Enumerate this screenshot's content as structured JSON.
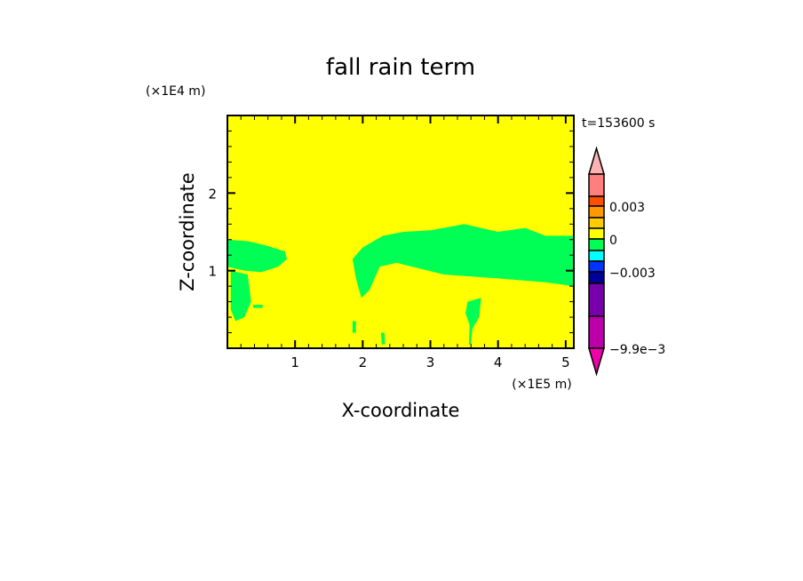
{
  "chart_data": {
    "type": "heatmap",
    "title": "fall rain term",
    "xlabel": "X-coordinate",
    "ylabel": "Z-coordinate",
    "x_unit": "(×1E5 m)",
    "y_unit": "(×1E4 m)",
    "time_label": "t=153600 s",
    "xlim": [
      0,
      5.12
    ],
    "ylim": [
      0,
      3
    ],
    "xticks": [
      1,
      2,
      3,
      4,
      5
    ],
    "yticks": [
      1,
      2
    ],
    "background_level_color": "#ffff00",
    "colorbar": {
      "levels_colors": [
        "#ffb3b3",
        "#ff7f7f",
        "#ff5000",
        "#ff9900",
        "#ffcc00",
        "#ffff00",
        "#00ff55",
        "#00ffff",
        "#0033ff",
        "#000099",
        "#7700aa",
        "#bb00aa",
        "#ee00aa"
      ],
      "tick_labels": [
        "0.003",
        "0",
        "−0.003",
        "−9.9e−3"
      ],
      "extend": "both"
    },
    "regions": [
      {
        "level": "0 to −0.0015",
        "color": "#00ff55",
        "points": [
          [
            0,
            1.4
          ],
          [
            0.3,
            1.38
          ],
          [
            0.55,
            1.33
          ],
          [
            0.85,
            1.25
          ],
          [
            0.88,
            1.15
          ],
          [
            0.75,
            1.05
          ],
          [
            0.5,
            0.98
          ],
          [
            0.25,
            1.0
          ],
          [
            0,
            1.05
          ]
        ]
      },
      {
        "level": "0 to −0.0015",
        "color": "#00ff55",
        "points": [
          [
            0.05,
            1.0
          ],
          [
            0.3,
            0.95
          ],
          [
            0.35,
            0.6
          ],
          [
            0.25,
            0.4
          ],
          [
            0.12,
            0.35
          ],
          [
            0.05,
            0.5
          ]
        ]
      },
      {
        "level": "0 to −0.0015",
        "color": "#00ff55",
        "points": [
          [
            0.38,
            0.56
          ],
          [
            0.52,
            0.56
          ],
          [
            0.52,
            0.52
          ],
          [
            0.38,
            0.52
          ]
        ]
      },
      {
        "level": "0 to −0.0015",
        "color": "#00ff55",
        "points": [
          [
            1.85,
            1.15
          ],
          [
            2.0,
            1.3
          ],
          [
            2.3,
            1.45
          ],
          [
            2.6,
            1.5
          ],
          [
            3.0,
            1.52
          ],
          [
            3.5,
            1.6
          ],
          [
            4.0,
            1.5
          ],
          [
            4.4,
            1.55
          ],
          [
            4.7,
            1.45
          ],
          [
            5.12,
            1.45
          ],
          [
            5.12,
            0.8
          ],
          [
            4.7,
            0.85
          ],
          [
            4.0,
            0.9
          ],
          [
            3.2,
            0.95
          ],
          [
            2.5,
            1.1
          ],
          [
            2.25,
            1.05
          ],
          [
            2.1,
            0.75
          ],
          [
            1.98,
            0.65
          ],
          [
            1.9,
            0.9
          ]
        ]
      },
      {
        "level": "0 to −0.0015",
        "color": "#00ff55",
        "points": [
          [
            3.55,
            0.6
          ],
          [
            3.75,
            0.65
          ],
          [
            3.72,
            0.4
          ],
          [
            3.62,
            0.25
          ],
          [
            3.6,
            0.05
          ],
          [
            3.57,
            0.05
          ],
          [
            3.58,
            0.3
          ],
          [
            3.52,
            0.45
          ]
        ]
      },
      {
        "level": "0 to −0.0015",
        "color": "#00ff55",
        "points": [
          [
            1.85,
            0.35
          ],
          [
            1.9,
            0.35
          ],
          [
            1.9,
            0.2
          ],
          [
            1.85,
            0.2
          ]
        ]
      },
      {
        "level": "0 to −0.0015",
        "color": "#00ff55",
        "points": [
          [
            2.27,
            0.2
          ],
          [
            2.32,
            0.2
          ],
          [
            2.33,
            0.05
          ],
          [
            2.28,
            0.05
          ]
        ]
      }
    ]
  }
}
